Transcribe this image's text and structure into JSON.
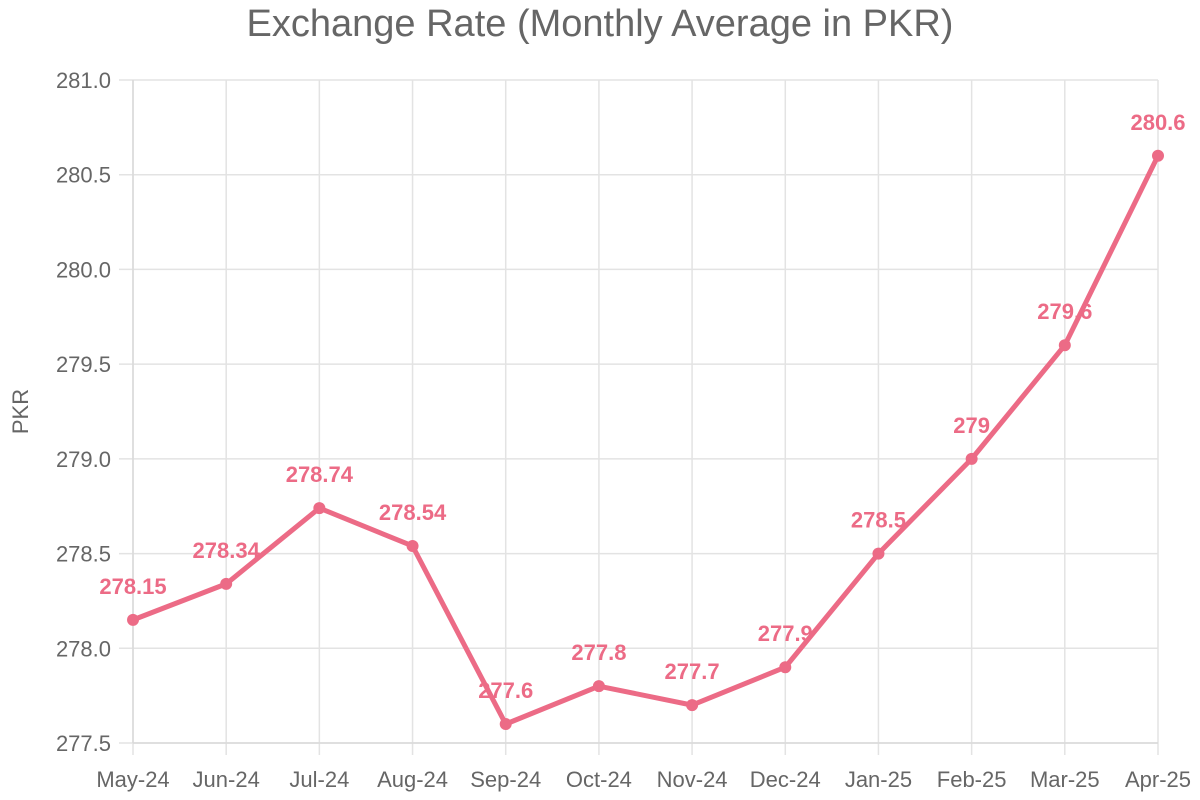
{
  "chart_data": {
    "type": "line",
    "title": "Exchange Rate (Monthly Average in PKR)",
    "xlabel": "",
    "ylabel": "PKR",
    "categories": [
      "May-24",
      "Jun-24",
      "Jul-24",
      "Aug-24",
      "Sep-24",
      "Oct-24",
      "Nov-24",
      "Dec-24",
      "Jan-25",
      "Feb-25",
      "Mar-25",
      "Apr-25"
    ],
    "series": [
      {
        "values": [
          278.15,
          278.34,
          278.74,
          278.54,
          277.6,
          277.8,
          277.7,
          277.9,
          278.5,
          279,
          279.6,
          280.6
        ],
        "labels": [
          "278.15",
          "278.34",
          "278.74",
          "278.54",
          "277.6",
          "277.8",
          "277.7",
          "277.9",
          "278.5",
          "279",
          "279.6",
          "280.6"
        ],
        "color": "#ec6b86"
      }
    ],
    "ylim": [
      277.5,
      281.0
    ],
    "yticks": [
      "277.5",
      "278.0",
      "278.5",
      "279.0",
      "279.5",
      "280.0",
      "280.5",
      "281.0"
    ],
    "grid": true,
    "legend": "none"
  }
}
